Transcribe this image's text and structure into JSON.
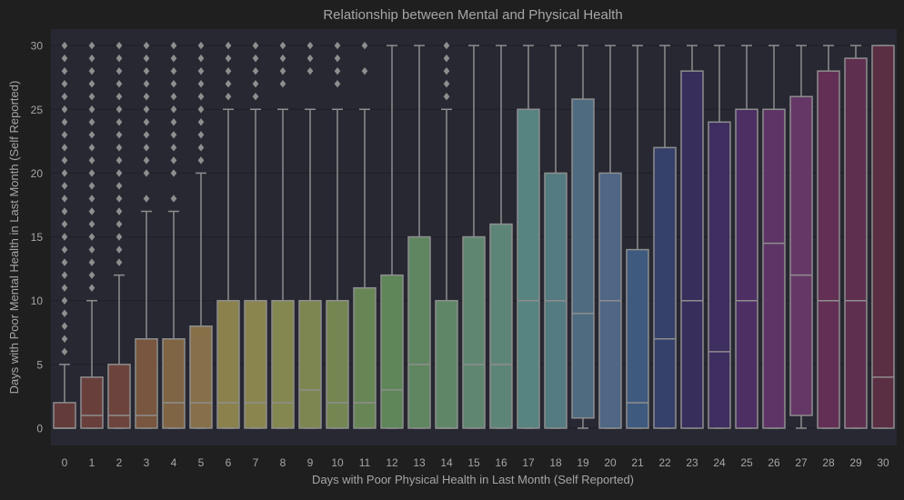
{
  "chart_data": {
    "type": "box",
    "title": "Relationship between Mental and Physical Health",
    "xlabel": "Days with Poor Physical Health in Last Month (Self Reported)",
    "ylabel": "Days with Poor Mental Health in Last Month (Self Reported)",
    "categories": [
      "0",
      "1",
      "2",
      "3",
      "4",
      "5",
      "6",
      "7",
      "8",
      "9",
      "10",
      "11",
      "12",
      "13",
      "14",
      "15",
      "16",
      "17",
      "18",
      "19",
      "20",
      "21",
      "22",
      "23",
      "24",
      "25",
      "26",
      "27",
      "28",
      "29",
      "30"
    ],
    "y_ticks": [
      0,
      5,
      10,
      15,
      20,
      25,
      30
    ],
    "ylim": [
      -1.5,
      31.5
    ],
    "grid": "horizontal",
    "background": "#1f1f1f",
    "plot_background": "#272832",
    "box_edge_color": "#8e8e8e",
    "text_color": "#a6a6a6",
    "boxes": [
      {
        "x": "0",
        "q1": 0,
        "median": 0,
        "q3": 2,
        "whislo": 0,
        "whishi": 5,
        "outliers": [
          6,
          7,
          8,
          9,
          10,
          11,
          12,
          13,
          14,
          15,
          16,
          17,
          18,
          19,
          20,
          21,
          22,
          23,
          24,
          25,
          26,
          27,
          28,
          29,
          30
        ]
      },
      {
        "x": "1",
        "q1": 0,
        "median": 1,
        "q3": 4,
        "whislo": 0,
        "whishi": 10,
        "outliers": [
          11,
          12,
          13,
          14,
          15,
          16,
          17,
          18,
          19,
          20,
          21,
          22,
          23,
          24,
          25,
          26,
          27,
          28,
          29,
          30
        ]
      },
      {
        "x": "2",
        "q1": 0,
        "median": 1,
        "q3": 5,
        "whislo": 0,
        "whishi": 12,
        "outliers": [
          13,
          14,
          15,
          16,
          17,
          18,
          19,
          20,
          21,
          22,
          23,
          24,
          25,
          26,
          27,
          28,
          29,
          30
        ]
      },
      {
        "x": "3",
        "q1": 0,
        "median": 1,
        "q3": 7,
        "whislo": 0,
        "whishi": 17,
        "outliers": [
          18,
          20,
          21,
          22,
          23,
          24,
          25,
          26,
          27,
          28,
          29,
          30
        ]
      },
      {
        "x": "4",
        "q1": 0,
        "median": 2,
        "q3": 7,
        "whislo": 0,
        "whishi": 17,
        "outliers": [
          18,
          20,
          21,
          22,
          23,
          24,
          25,
          26,
          27,
          28,
          29,
          30
        ]
      },
      {
        "x": "5",
        "q1": 0,
        "median": 2,
        "q3": 8,
        "whislo": 0,
        "whishi": 20,
        "outliers": [
          21,
          22,
          23,
          24,
          25,
          26,
          27,
          28,
          29,
          30
        ]
      },
      {
        "x": "6",
        "q1": 0,
        "median": 2,
        "q3": 10,
        "whislo": 0,
        "whishi": 25,
        "outliers": [
          26,
          27,
          28,
          29,
          30
        ]
      },
      {
        "x": "7",
        "q1": 0,
        "median": 2,
        "q3": 10,
        "whislo": 0,
        "whishi": 25,
        "outliers": [
          26,
          27,
          28,
          29,
          30
        ]
      },
      {
        "x": "8",
        "q1": 0,
        "median": 2,
        "q3": 10,
        "whislo": 0,
        "whishi": 25,
        "outliers": [
          27,
          28,
          29,
          30
        ]
      },
      {
        "x": "9",
        "q1": 0,
        "median": 3,
        "q3": 10,
        "whislo": 0,
        "whishi": 25,
        "outliers": [
          28,
          29,
          30
        ]
      },
      {
        "x": "10",
        "q1": 0,
        "median": 2,
        "q3": 10,
        "whislo": 0,
        "whishi": 25,
        "outliers": [
          27,
          28,
          29,
          30
        ]
      },
      {
        "x": "11",
        "q1": 0,
        "median": 2,
        "q3": 11,
        "whislo": 0,
        "whishi": 25,
        "outliers": [
          28,
          30
        ]
      },
      {
        "x": "12",
        "q1": 0,
        "median": 3,
        "q3": 12,
        "whislo": 0,
        "whishi": 30,
        "outliers": []
      },
      {
        "x": "13",
        "q1": 0,
        "median": 5,
        "q3": 15,
        "whislo": 0,
        "whishi": 30,
        "outliers": []
      },
      {
        "x": "14",
        "q1": 0,
        "median": 0,
        "q3": 10,
        "whislo": 0,
        "whishi": 25,
        "outliers": [
          26,
          27,
          28,
          29,
          30
        ]
      },
      {
        "x": "15",
        "q1": 0,
        "median": 5,
        "q3": 15,
        "whislo": 0,
        "whishi": 30,
        "outliers": []
      },
      {
        "x": "16",
        "q1": 0,
        "median": 5,
        "q3": 16,
        "whislo": 0,
        "whishi": 30,
        "outliers": []
      },
      {
        "x": "17",
        "q1": 0,
        "median": 10,
        "q3": 25,
        "whislo": 0,
        "whishi": 30,
        "outliers": []
      },
      {
        "x": "18",
        "q1": 0,
        "median": 10,
        "q3": 20,
        "whislo": 0,
        "whishi": 30,
        "outliers": []
      },
      {
        "x": "19",
        "q1": 0.8,
        "median": 9,
        "q3": 25.8,
        "whislo": 0,
        "whishi": 30,
        "outliers": []
      },
      {
        "x": "20",
        "q1": 0,
        "median": 10,
        "q3": 20,
        "whislo": 0,
        "whishi": 30,
        "outliers": []
      },
      {
        "x": "21",
        "q1": 0,
        "median": 2,
        "q3": 14,
        "whislo": 0,
        "whishi": 30,
        "outliers": []
      },
      {
        "x": "22",
        "q1": 0,
        "median": 7,
        "q3": 22,
        "whislo": 0,
        "whishi": 30,
        "outliers": []
      },
      {
        "x": "23",
        "q1": 0,
        "median": 10,
        "q3": 28,
        "whislo": 0,
        "whishi": 30,
        "outliers": []
      },
      {
        "x": "24",
        "q1": 0,
        "median": 6,
        "q3": 24,
        "whislo": 0,
        "whishi": 30,
        "outliers": []
      },
      {
        "x": "25",
        "q1": 0,
        "median": 10,
        "q3": 25,
        "whislo": 0,
        "whishi": 30,
        "outliers": []
      },
      {
        "x": "26",
        "q1": 0,
        "median": 14.5,
        "q3": 25,
        "whislo": 0,
        "whishi": 30,
        "outliers": []
      },
      {
        "x": "27",
        "q1": 1,
        "median": 12,
        "q3": 26,
        "whislo": 0,
        "whishi": 30,
        "outliers": []
      },
      {
        "x": "28",
        "q1": 0,
        "median": 10,
        "q3": 28,
        "whislo": 0,
        "whishi": 30,
        "outliers": []
      },
      {
        "x": "29",
        "q1": 0,
        "median": 10,
        "q3": 29,
        "whislo": 0,
        "whishi": 30,
        "outliers": []
      },
      {
        "x": "30",
        "q1": 0,
        "median": 4,
        "q3": 30,
        "whislo": 0,
        "whishi": 30,
        "outliers": []
      }
    ],
    "box_colors": [
      "#643b3b",
      "#693f3c",
      "#6d443d",
      "#79563f",
      "#7f6544",
      "#877049",
      "#8a814c",
      "#8a854f",
      "#84874f",
      "#7d8650",
      "#748652",
      "#688655",
      "#5e8659",
      "#5f8661",
      "#5f8767",
      "#5f8770",
      "#5d8577",
      "#578380",
      "#547b81",
      "#4e6b80",
      "#4f6684",
      "#3f5a7f",
      "#35416a",
      "#382e5c",
      "#3f2e60",
      "#4e2f64",
      "#5e3466",
      "#653767",
      "#632f55",
      "#5f2f50",
      "#5b2f43"
    ]
  }
}
